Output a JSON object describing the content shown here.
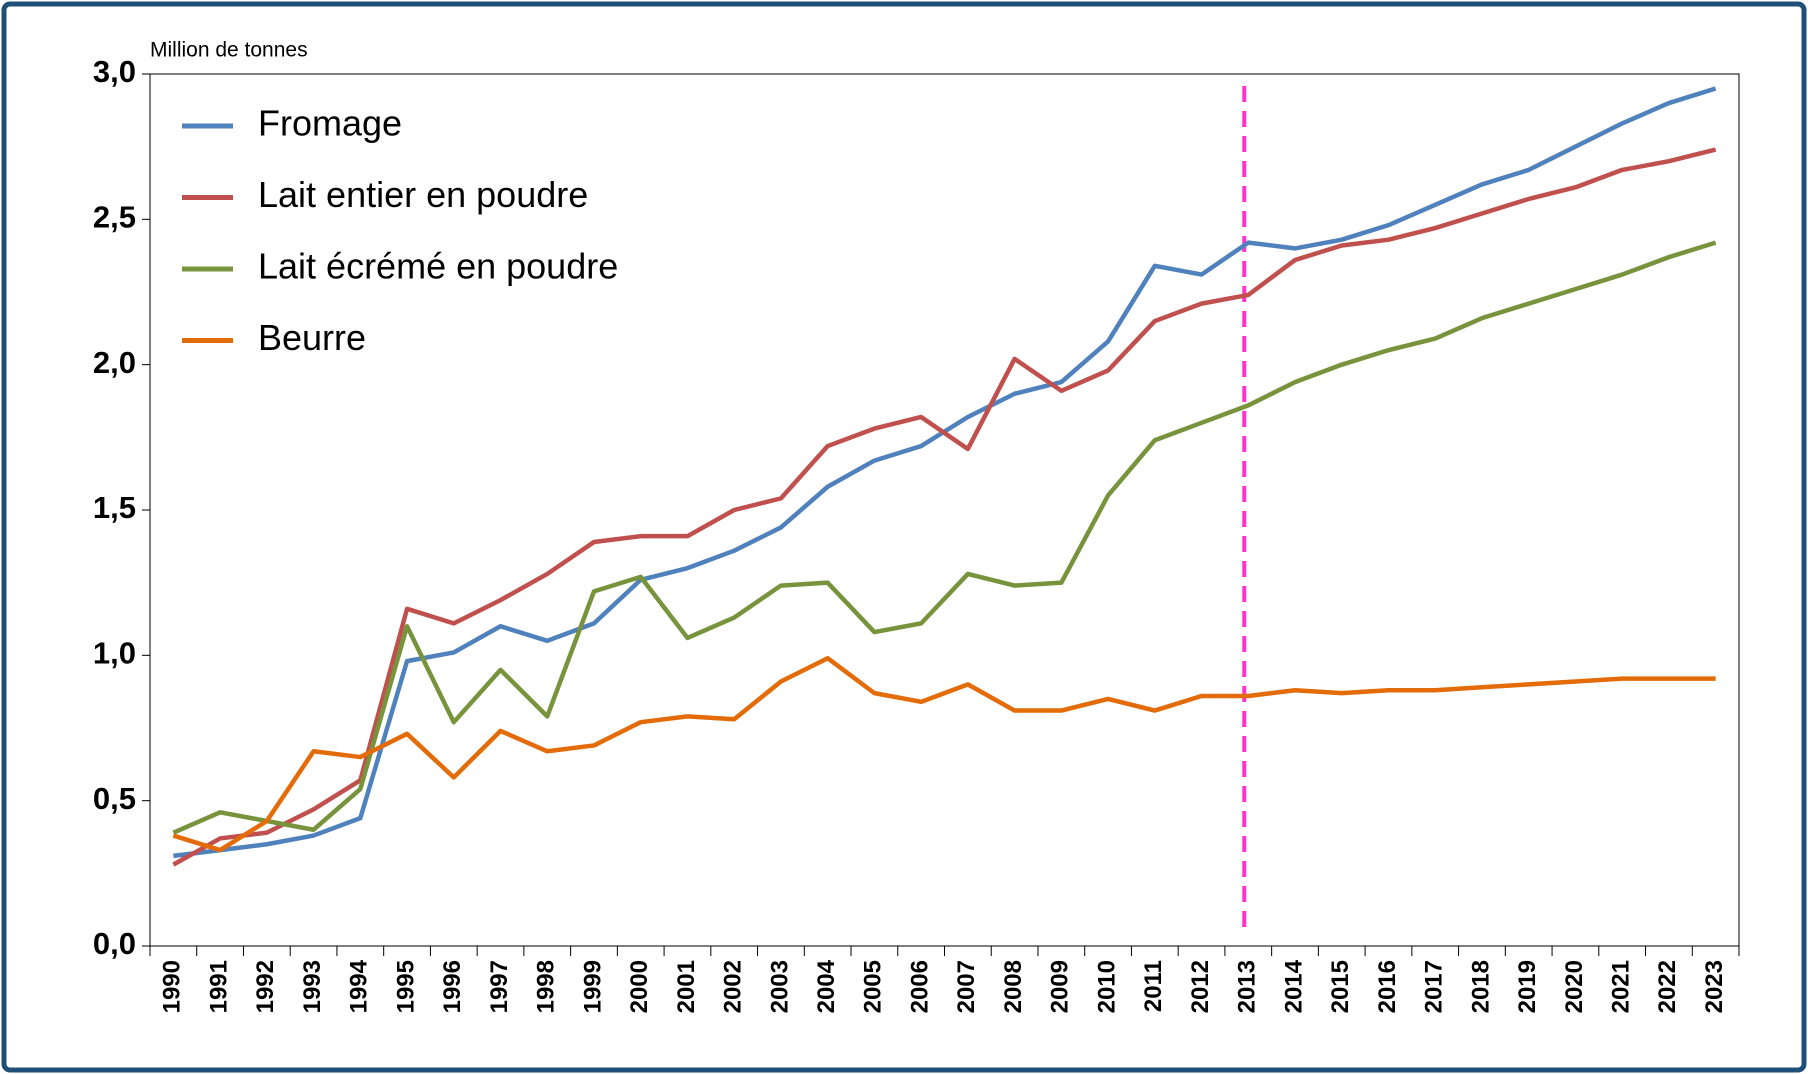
{
  "chart_data": {
    "type": "line",
    "y_label": "Million de tonnes",
    "categories": [
      "1990",
      "1991",
      "1992",
      "1993",
      "1994",
      "1995",
      "1996",
      "1997",
      "1998",
      "1999",
      "2000",
      "2001",
      "2002",
      "2003",
      "2004",
      "2005",
      "2006",
      "2007",
      "2008",
      "2009",
      "2010",
      "2011",
      "2012",
      "2013",
      "2014",
      "2015",
      "2016",
      "2017",
      "2018",
      "2019",
      "2020",
      "2021",
      "2022",
      "2023"
    ],
    "series": [
      {
        "name": "Fromage",
        "color": "#4f81bd",
        "values": [
          0.31,
          0.33,
          0.35,
          0.38,
          0.44,
          0.98,
          1.01,
          1.1,
          1.05,
          1.11,
          1.26,
          1.3,
          1.36,
          1.44,
          1.58,
          1.67,
          1.72,
          1.82,
          1.9,
          1.94,
          2.08,
          2.34,
          2.31,
          2.42,
          2.4,
          2.43,
          2.48,
          2.55,
          2.62,
          2.67,
          2.75,
          2.83,
          2.9,
          2.95
        ]
      },
      {
        "name": "Lait entier en poudre",
        "color": "#c0504d",
        "values": [
          0.28,
          0.37,
          0.39,
          0.47,
          0.57,
          1.16,
          1.11,
          1.19,
          1.28,
          1.39,
          1.41,
          1.41,
          1.5,
          1.54,
          1.72,
          1.78,
          1.82,
          1.71,
          2.02,
          1.91,
          1.98,
          2.15,
          2.21,
          2.24,
          2.36,
          2.41,
          2.43,
          2.47,
          2.52,
          2.57,
          2.61,
          2.67,
          2.7,
          2.74
        ]
      },
      {
        "name": "Lait écrémé en poudre",
        "color": "#77933c",
        "values": [
          0.39,
          0.46,
          0.43,
          0.4,
          0.54,
          1.1,
          0.77,
          0.95,
          0.79,
          1.22,
          1.27,
          1.06,
          1.13,
          1.24,
          1.25,
          1.08,
          1.11,
          1.28,
          1.24,
          1.25,
          1.55,
          1.74,
          1.8,
          1.86,
          1.94,
          2.0,
          2.05,
          2.09,
          2.16,
          2.21,
          2.26,
          2.31,
          2.37,
          2.42
        ]
      },
      {
        "name": "Beurre",
        "color": "#e36c09",
        "values": [
          0.38,
          0.33,
          0.43,
          0.67,
          0.65,
          0.73,
          0.58,
          0.74,
          0.67,
          0.69,
          0.77,
          0.79,
          0.78,
          0.91,
          0.99,
          0.87,
          0.84,
          0.9,
          0.81,
          0.81,
          0.85,
          0.81,
          0.86,
          0.86,
          0.88,
          0.87,
          0.88,
          0.88,
          0.89,
          0.9,
          0.91,
          0.92,
          0.92,
          0.92
        ]
      }
    ],
    "ylim": [
      0,
      3
    ],
    "yticks": [
      {
        "value": 0,
        "label": "0,0"
      },
      {
        "value": 0.5,
        "label": "0,5"
      },
      {
        "value": 1,
        "label": "1,0"
      },
      {
        "value": 1.5,
        "label": "1,5"
      },
      {
        "value": 2,
        "label": "2,0"
      },
      {
        "value": 2.5,
        "label": "2,5"
      },
      {
        "value": 3,
        "label": "3,0"
      }
    ],
    "legend": "upper left",
    "vline": {
      "at": "2013",
      "color": "#ff33cc"
    }
  }
}
